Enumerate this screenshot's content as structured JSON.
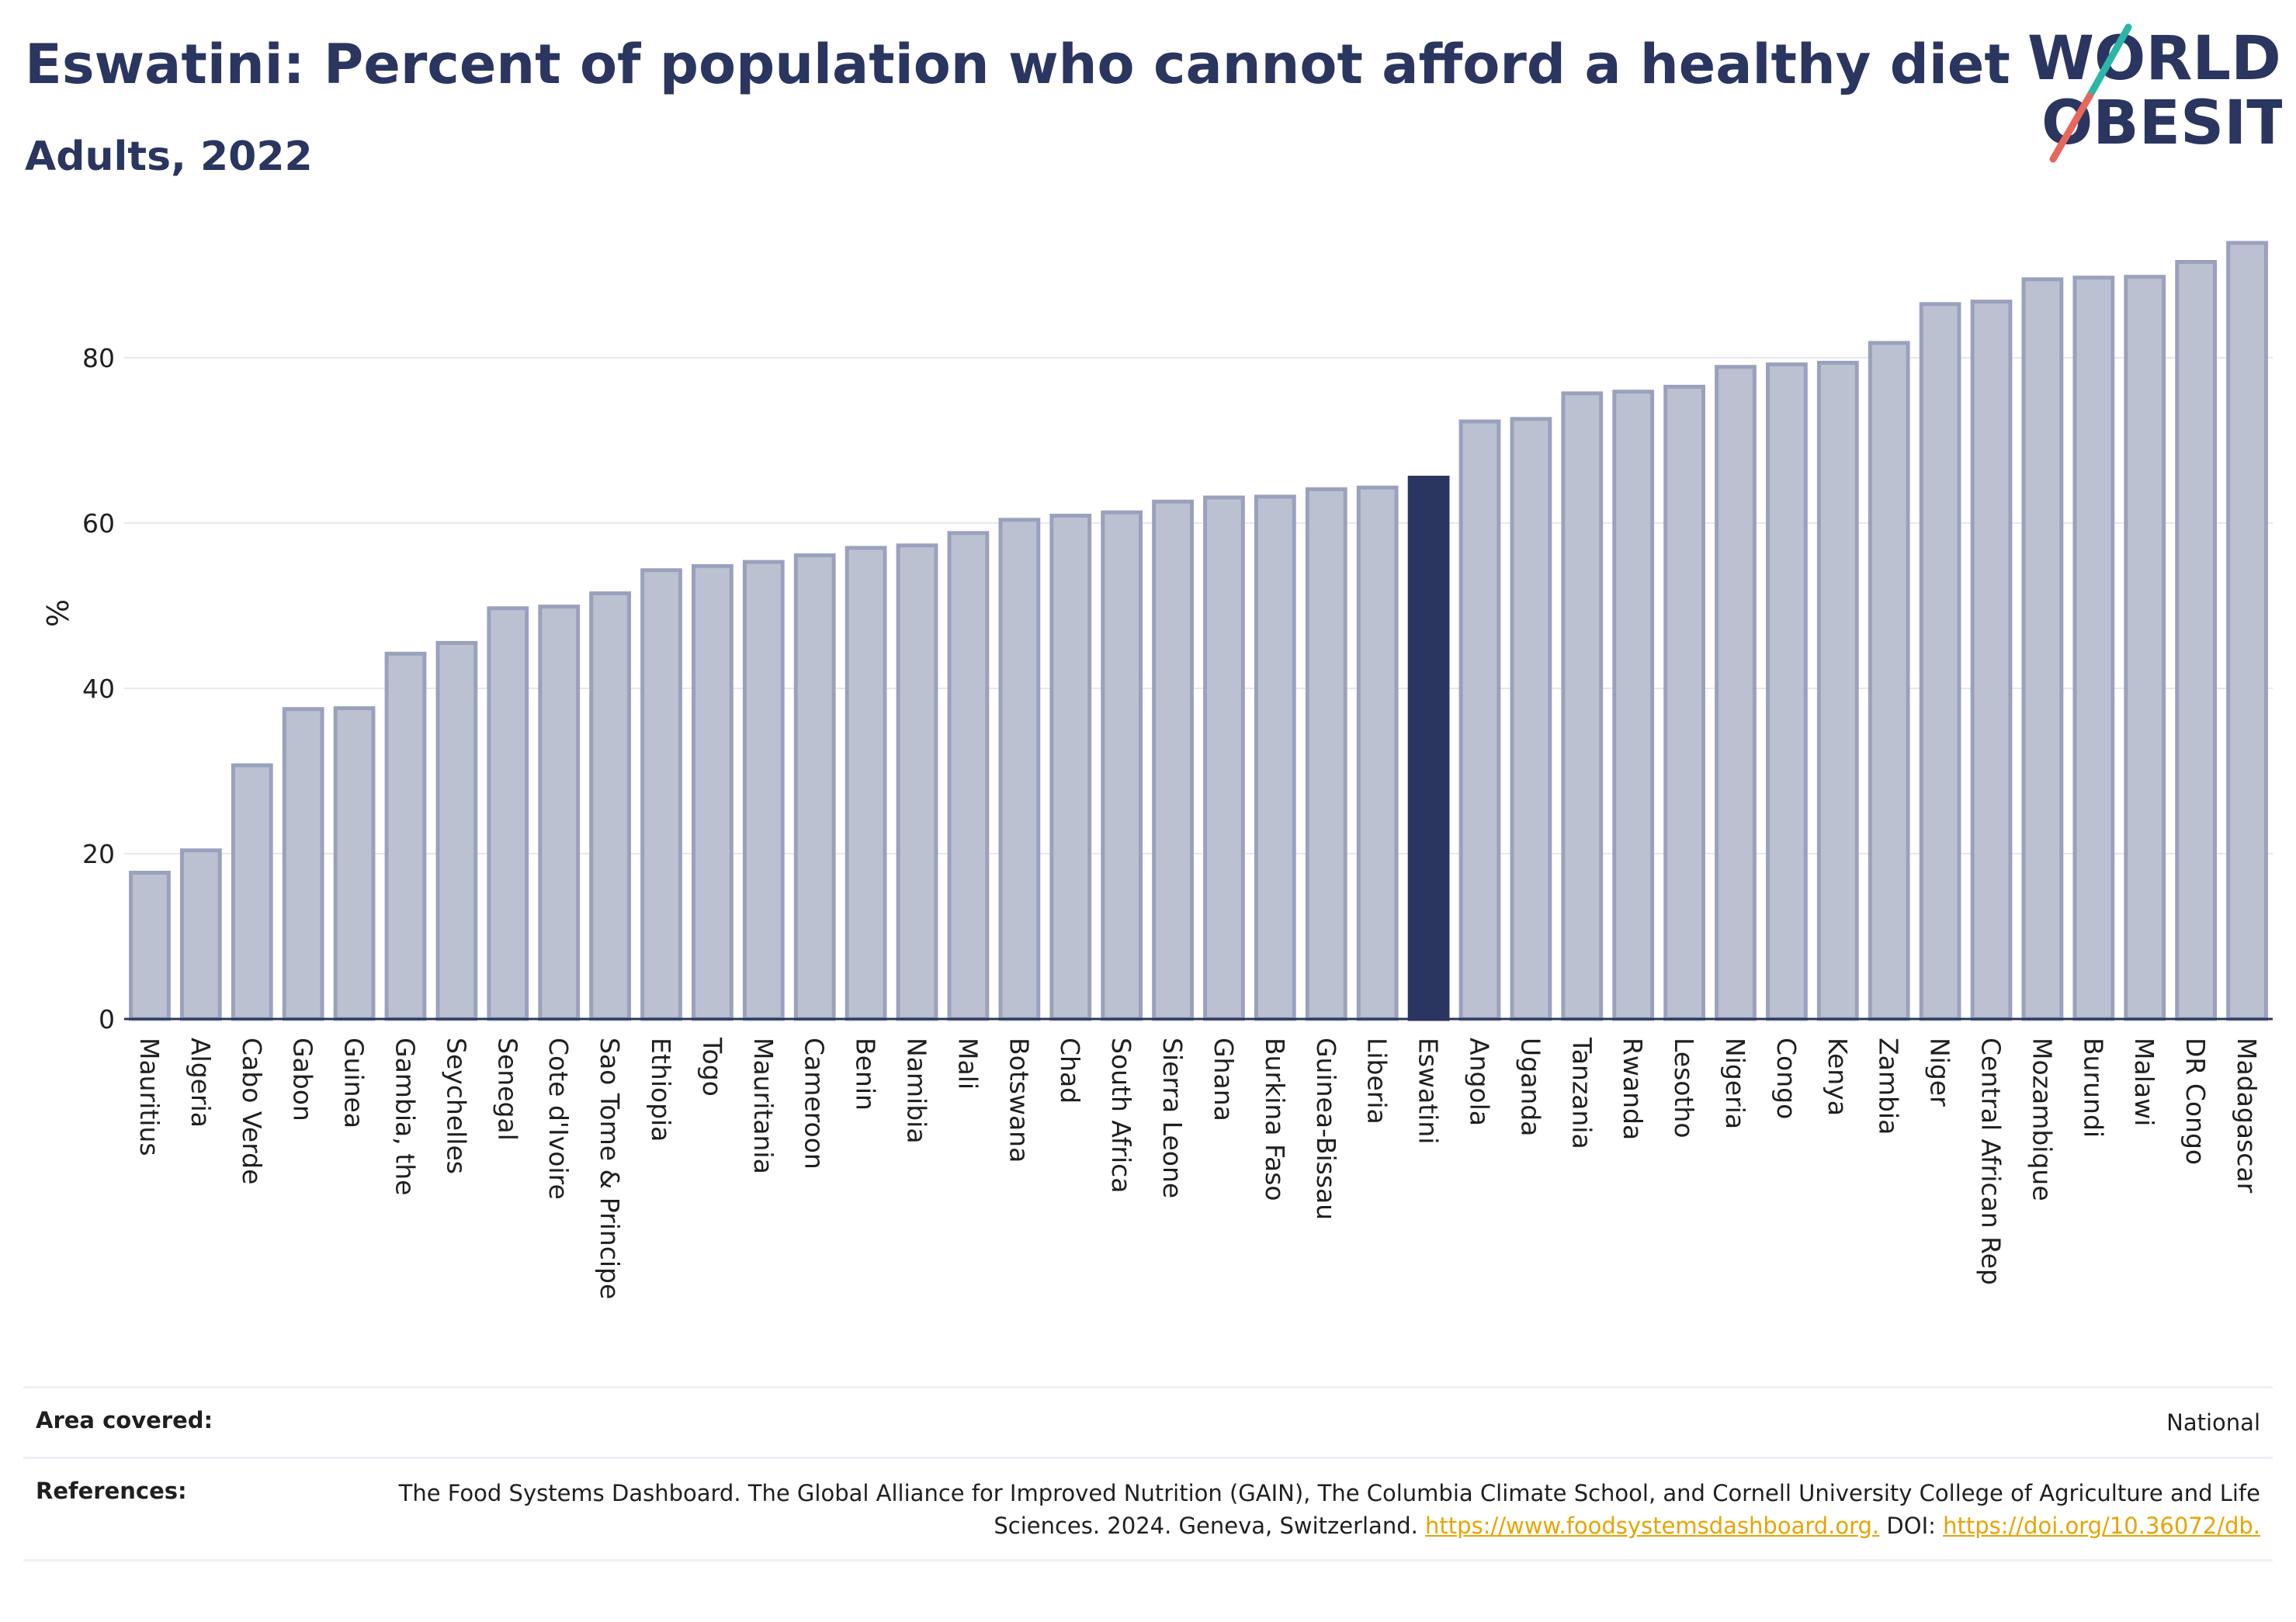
{
  "header": {
    "title": "Eswatini: Percent of population who cannot afford a healthy diet",
    "subtitle": "Adults, 2022"
  },
  "logo": {
    "line1": "WORLD",
    "line2": "OBESITY",
    "colors": {
      "text": "#2a3560",
      "accent_teal": "#2bb6a8",
      "accent_red": "#e8675c"
    }
  },
  "chart_data": {
    "type": "bar",
    "title": "Eswatini: Percent of population who cannot afford a healthy diet",
    "subtitle": "Adults, 2022",
    "xlabel": "",
    "ylabel": "%",
    "ylim": [
      0,
      97
    ],
    "yticks": [
      0,
      20,
      40,
      60,
      80
    ],
    "grid": true,
    "highlight": "Eswatini",
    "colors": {
      "bar": "#bcc1d1",
      "bar_edge": "#9aa1bd",
      "highlight": "#2a3560"
    },
    "categories": [
      "Mauritius",
      "Algeria",
      "Cabo Verde",
      "Gabon",
      "Guinea",
      "Gambia, the",
      "Seychelles",
      "Senegal",
      "Cote d'Ivoire",
      "Sao Tome & Principe",
      "Ethiopia",
      "Togo",
      "Mauritania",
      "Cameroon",
      "Benin",
      "Namibia",
      "Mali",
      "Botswana",
      "Chad",
      "South Africa",
      "Sierra Leone",
      "Ghana",
      "Burkina Faso",
      "Guinea-Bissau",
      "Liberia",
      "Eswatini",
      "Angola",
      "Uganda",
      "Tanzania",
      "Rwanda",
      "Lesotho",
      "Nigeria",
      "Congo",
      "Kenya",
      "Zambia",
      "Niger",
      "Central African Rep",
      "Mozambique",
      "Burundi",
      "Malawi",
      "DR Congo",
      "Madagascar"
    ],
    "values": [
      17.7,
      20.4,
      30.7,
      37.5,
      37.6,
      44.2,
      45.5,
      49.7,
      49.9,
      51.5,
      54.3,
      54.8,
      55.3,
      56.1,
      57.0,
      57.3,
      58.8,
      60.4,
      60.9,
      61.3,
      62.6,
      63.1,
      63.2,
      64.1,
      64.3,
      65.5,
      72.3,
      72.6,
      75.7,
      75.9,
      76.5,
      78.9,
      79.2,
      79.4,
      81.8,
      86.5,
      86.8,
      89.5,
      89.7,
      89.8,
      91.6,
      93.9
    ]
  },
  "footer": {
    "area_label": "Area covered:",
    "area_value": "National",
    "refs_label": "References:",
    "refs_text": "The Food Systems Dashboard. The Global Alliance for Improved Nutrition (GAIN), The Columbia Climate School, and Cornell University College of Agriculture and Life Sciences. 2024. Geneva, Switzerland.",
    "refs_link1": "https://www.foodsystemsdashboard.org.",
    "refs_doi_label": "DOI:",
    "refs_link2": "https://doi.org/10.36072/db."
  }
}
